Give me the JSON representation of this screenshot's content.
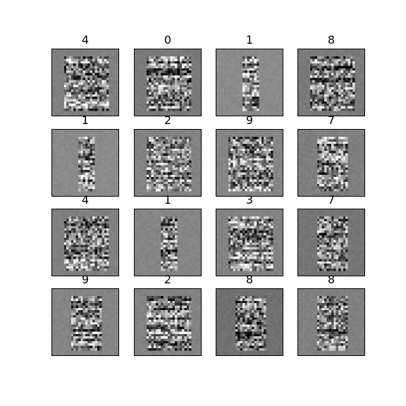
{
  "figure": {
    "rows": 4,
    "cols": 4,
    "background": "#ffffff",
    "colormap": "gray",
    "panels": [
      {
        "label": "4",
        "mean_gray": "#808080",
        "shape": "wide"
      },
      {
        "label": "0",
        "mean_gray": "#7a7a7a",
        "shape": "wide"
      },
      {
        "label": "1",
        "mean_gray": "#8a8a8a",
        "shape": "narrow"
      },
      {
        "label": "8",
        "mean_gray": "#7a7a7a",
        "shape": "wide"
      },
      {
        "label": "1",
        "mean_gray": "#8a8a8a",
        "shape": "narrow"
      },
      {
        "label": "2",
        "mean_gray": "#828282",
        "shape": "wide"
      },
      {
        "label": "9",
        "mean_gray": "#858585",
        "shape": "wide"
      },
      {
        "label": "7",
        "mean_gray": "#7e7e7e",
        "shape": "medium"
      },
      {
        "label": "4",
        "mean_gray": "#808080",
        "shape": "wide"
      },
      {
        "label": "1",
        "mean_gray": "#858585",
        "shape": "narrow"
      },
      {
        "label": "3",
        "mean_gray": "#828282",
        "shape": "wide"
      },
      {
        "label": "7",
        "mean_gray": "#757575",
        "shape": "medium"
      },
      {
        "label": "9",
        "mean_gray": "#858585",
        "shape": "medium"
      },
      {
        "label": "2",
        "mean_gray": "#828282",
        "shape": "wide"
      },
      {
        "label": "8",
        "mean_gray": "#707070",
        "shape": "medium"
      },
      {
        "label": "8",
        "mean_gray": "#808080",
        "shape": "medium"
      }
    ]
  }
}
